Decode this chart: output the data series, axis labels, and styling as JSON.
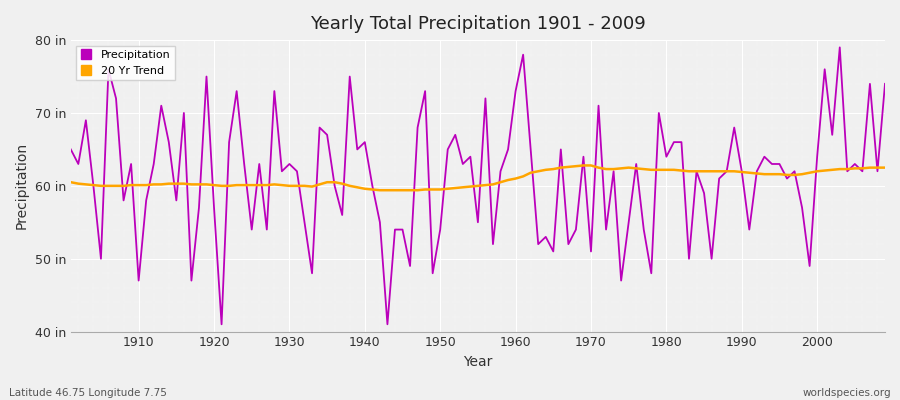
{
  "title": "Yearly Total Precipitation 1901 - 2009",
  "xlabel": "Year",
  "ylabel": "Precipitation",
  "xlim": [
    1901,
    2009
  ],
  "ylim": [
    40,
    80
  ],
  "yticks": [
    40,
    50,
    60,
    70,
    80
  ],
  "ytick_labels": [
    "40 in",
    "50 in",
    "60 in",
    "70 in",
    "80 in"
  ],
  "xticks": [
    1910,
    1920,
    1930,
    1940,
    1950,
    1960,
    1970,
    1980,
    1990,
    2000
  ],
  "bg_color": "#f0f0f0",
  "plot_bg_color": "#f0f0f0",
  "precip_color": "#bb00bb",
  "trend_color": "#FFA500",
  "footer_left": "Latitude 46.75 Longitude 7.75",
  "footer_right": "worldspecies.org",
  "years": [
    1901,
    1902,
    1903,
    1904,
    1905,
    1906,
    1907,
    1908,
    1909,
    1910,
    1911,
    1912,
    1913,
    1914,
    1915,
    1916,
    1917,
    1918,
    1919,
    1920,
    1921,
    1922,
    1923,
    1924,
    1925,
    1926,
    1927,
    1928,
    1929,
    1930,
    1931,
    1932,
    1933,
    1934,
    1935,
    1936,
    1937,
    1938,
    1939,
    1940,
    1941,
    1942,
    1943,
    1944,
    1945,
    1946,
    1947,
    1948,
    1949,
    1950,
    1951,
    1952,
    1953,
    1954,
    1955,
    1956,
    1957,
    1958,
    1959,
    1960,
    1961,
    1962,
    1963,
    1964,
    1965,
    1966,
    1967,
    1968,
    1969,
    1970,
    1971,
    1972,
    1973,
    1974,
    1975,
    1976,
    1977,
    1978,
    1979,
    1980,
    1981,
    1982,
    1983,
    1984,
    1985,
    1986,
    1987,
    1988,
    1989,
    1990,
    1991,
    1992,
    1993,
    1994,
    1995,
    1996,
    1997,
    1998,
    1999,
    2000,
    2001,
    2002,
    2003,
    2004,
    2005,
    2006,
    2007,
    2008,
    2009
  ],
  "precip": [
    65,
    63,
    69,
    60,
    50,
    76,
    72,
    58,
    63,
    47,
    58,
    63,
    71,
    66,
    58,
    70,
    47,
    57,
    75,
    57,
    41,
    66,
    73,
    63,
    54,
    63,
    54,
    73,
    62,
    63,
    62,
    55,
    48,
    68,
    67,
    60,
    56,
    75,
    65,
    66,
    60,
    55,
    41,
    54,
    54,
    49,
    68,
    73,
    48,
    54,
    65,
    67,
    63,
    64,
    55,
    72,
    52,
    62,
    65,
    73,
    78,
    65,
    52,
    53,
    51,
    65,
    52,
    54,
    64,
    51,
    71,
    54,
    62,
    47,
    55,
    63,
    54,
    48,
    70,
    64,
    66,
    66,
    50,
    62,
    59,
    50,
    61,
    62,
    68,
    62,
    54,
    62,
    64,
    63,
    63,
    61,
    62,
    57,
    49,
    64,
    76,
    67,
    79,
    62,
    63,
    62,
    74,
    62,
    74
  ],
  "trend": [
    60.5,
    60.3,
    60.2,
    60.1,
    60.0,
    60.0,
    60.0,
    60.0,
    60.1,
    60.1,
    60.1,
    60.2,
    60.2,
    60.3,
    60.3,
    60.3,
    60.2,
    60.2,
    60.2,
    60.1,
    60.0,
    60.0,
    60.1,
    60.1,
    60.1,
    60.1,
    60.1,
    60.2,
    60.1,
    60.0,
    60.0,
    60.0,
    59.9,
    60.2,
    60.5,
    60.5,
    60.3,
    60.0,
    59.8,
    59.6,
    59.5,
    59.4,
    59.4,
    59.4,
    59.4,
    59.4,
    59.4,
    59.5,
    59.5,
    59.5,
    59.6,
    59.7,
    59.8,
    59.9,
    60.0,
    60.1,
    60.2,
    60.5,
    60.8,
    61.0,
    61.3,
    61.8,
    62.0,
    62.2,
    62.3,
    62.5,
    62.6,
    62.7,
    62.8,
    62.8,
    62.5,
    62.3,
    62.3,
    62.4,
    62.5,
    62.4,
    62.3,
    62.2,
    62.2,
    62.2,
    62.2,
    62.1,
    62.0,
    62.0,
    62.0,
    62.0,
    62.0,
    62.0,
    62.0,
    61.9,
    61.8,
    61.7,
    61.6,
    61.6,
    61.6,
    61.5,
    61.5,
    61.6,
    61.8,
    62.0,
    62.1,
    62.2,
    62.3,
    62.3,
    62.4,
    62.4,
    62.5,
    62.5,
    62.5
  ]
}
